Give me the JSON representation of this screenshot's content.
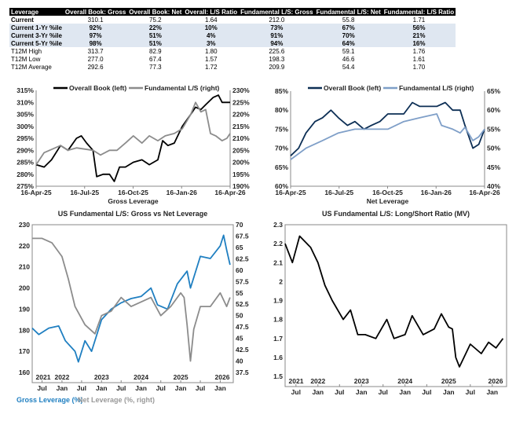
{
  "table": {
    "headers": [
      "Leverage",
      "Overall Book: Gross",
      "Overall Book: Net",
      "Overall: L/S Ratio",
      "Fundamental L/S: Gross",
      "Fundamental L/S: Net",
      "Fundamental: L/S Ratio"
    ],
    "rows": [
      {
        "type": "cur",
        "cells": [
          "Current",
          "310.1",
          "75.2",
          "1.64",
          "212.0",
          "55.8",
          "1.71"
        ]
      },
      {
        "type": "pct",
        "cells": [
          "Current 1-Yr %ile",
          "92%",
          "22%",
          "10%",
          "73%",
          "67%",
          "56%"
        ]
      },
      {
        "type": "pct",
        "cells": [
          "Current 3-Yr %ile",
          "97%",
          "51%",
          "4%",
          "91%",
          "70%",
          "21%"
        ]
      },
      {
        "type": "pct",
        "cells": [
          "Current 5-Yr %ile",
          "98%",
          "51%",
          "3%",
          "94%",
          "64%",
          "16%"
        ]
      },
      {
        "type": "n",
        "cells": [
          "T12M High",
          "313.7",
          "82.9",
          "1.80",
          "225.6",
          "59.1",
          "1.76"
        ]
      },
      {
        "type": "n",
        "cells": [
          "T12M Low",
          "277.0",
          "67.4",
          "1.57",
          "198.3",
          "46.6",
          "1.61"
        ]
      },
      {
        "type": "n",
        "cells": [
          "T12M Average",
          "292.6",
          "77.3",
          "1.72",
          "209.9",
          "54.4",
          "1.70"
        ]
      }
    ]
  },
  "chart_data": [
    {
      "type": "line",
      "title": "",
      "xlabel": "Gross Leverage",
      "xticks": [
        "16-Apr-25",
        "16-Jul-25",
        "16-Oct-25",
        "16-Jan-26",
        "16-Apr-26"
      ],
      "xlim": [
        "2025-04-16",
        "2026-04-16"
      ],
      "ylim": [
        275,
        315
      ],
      "yticks": [
        275,
        280,
        285,
        290,
        295,
        300,
        305,
        310,
        315
      ],
      "yunit": "%",
      "y2lim": [
        190,
        230
      ],
      "y2ticks": [
        190,
        195,
        200,
        205,
        210,
        215,
        220,
        225,
        230
      ],
      "y2unit": "%",
      "legend": "top",
      "series": [
        {
          "name": "Overall Book (left)",
          "axis": "left",
          "color": "#000000",
          "x": [
            "2025-04-16",
            "2025-05-01",
            "2025-05-15",
            "2025-06-01",
            "2025-06-15",
            "2025-07-01",
            "2025-07-10",
            "2025-07-20",
            "2025-08-01",
            "2025-08-08",
            "2025-08-20",
            "2025-09-01",
            "2025-09-10",
            "2025-09-20",
            "2025-10-01",
            "2025-10-16",
            "2025-11-01",
            "2025-11-15",
            "2025-12-01",
            "2025-12-10",
            "2025-12-20",
            "2026-01-01",
            "2026-01-16",
            "2026-02-01",
            "2026-02-10",
            "2026-02-20",
            "2026-03-01",
            "2026-03-15",
            "2026-03-25",
            "2026-04-01",
            "2026-04-16"
          ],
          "y": [
            284,
            283,
            286,
            292,
            290,
            295,
            296,
            293,
            290,
            279,
            280,
            280,
            277,
            283,
            283,
            285,
            286,
            284,
            286,
            294,
            292,
            293,
            300,
            305,
            308,
            307,
            309,
            312,
            313,
            310,
            310
          ]
        },
        {
          "name": "Fundamental L/S (right)",
          "axis": "right",
          "color": "#8c8c8c",
          "x": [
            "2025-04-16",
            "2025-05-01",
            "2025-06-01",
            "2025-06-15",
            "2025-07-01",
            "2025-08-01",
            "2025-08-15",
            "2025-09-01",
            "2025-09-15",
            "2025-10-01",
            "2025-10-16",
            "2025-11-01",
            "2025-11-15",
            "2025-12-01",
            "2025-12-15",
            "2026-01-01",
            "2026-01-16",
            "2026-02-01",
            "2026-02-10",
            "2026-02-20",
            "2026-03-01",
            "2026-03-10",
            "2026-03-20",
            "2026-04-01",
            "2026-04-10",
            "2026-04-16"
          ],
          "y": [
            199,
            204,
            207,
            205,
            206,
            205,
            203,
            205,
            205,
            208,
            211,
            208,
            211,
            209,
            211,
            212,
            214,
            220,
            225,
            221,
            222,
            212,
            211,
            209,
            210,
            212
          ]
        }
      ]
    },
    {
      "type": "line",
      "title": "",
      "xlabel": "Net Leverage",
      "xticks": [
        "16-Apr-25",
        "16-Jul-25",
        "16-Oct-25",
        "16-Jan-26",
        "16-Apr-26"
      ],
      "xlim": [
        "2025-04-16",
        "2026-04-16"
      ],
      "ylim": [
        60,
        85
      ],
      "yticks": [
        60,
        65,
        70,
        75,
        80,
        85
      ],
      "yunit": "%",
      "y2lim": [
        40,
        65
      ],
      "y2ticks": [
        40,
        45,
        50,
        55,
        60,
        65
      ],
      "y2unit": "%",
      "legend": "top",
      "series": [
        {
          "name": "Overall Book (left)",
          "axis": "left",
          "color": "#0d2f55",
          "x": [
            "2025-04-16",
            "2025-05-01",
            "2025-05-15",
            "2025-06-01",
            "2025-06-15",
            "2025-07-01",
            "2025-07-15",
            "2025-08-01",
            "2025-08-15",
            "2025-09-01",
            "2025-09-15",
            "2025-10-01",
            "2025-10-16",
            "2025-11-01",
            "2025-11-15",
            "2025-12-01",
            "2025-12-15",
            "2026-01-01",
            "2026-01-16",
            "2026-02-01",
            "2026-02-15",
            "2026-03-01",
            "2026-03-10",
            "2026-03-25",
            "2026-04-05",
            "2026-04-16"
          ],
          "y": [
            68,
            70,
            74,
            77,
            78,
            80,
            78,
            76,
            77,
            75,
            76,
            77,
            79,
            79,
            79,
            82,
            81,
            81,
            81,
            82,
            80,
            80,
            76,
            70,
            71,
            75
          ]
        },
        {
          "name": "Fundamental L/S (right)",
          "axis": "right",
          "color": "#7f9fc8",
          "x": [
            "2025-04-16",
            "2025-05-15",
            "2025-06-15",
            "2025-07-15",
            "2025-08-15",
            "2025-09-15",
            "2025-10-16",
            "2025-11-15",
            "2025-12-15",
            "2026-01-16",
            "2026-01-25",
            "2026-02-15",
            "2026-03-01",
            "2026-03-10",
            "2026-03-25",
            "2026-04-05",
            "2026-04-16"
          ],
          "y": [
            47,
            50,
            52,
            54,
            55,
            55,
            55,
            57,
            58,
            59,
            56,
            55,
            54,
            55.5,
            52,
            53,
            55
          ]
        }
      ]
    },
    {
      "type": "line",
      "title": "US Fundamental L/S: Gross vs Net Leverage",
      "xticks": [
        "Jul",
        "Jan",
        "Jul",
        "Jan",
        "Jul",
        "Jan",
        "Jul",
        "Jan",
        "Jul",
        "Jan"
      ],
      "years": [
        "2021",
        "2022",
        "2023",
        "2024",
        "2025",
        "2026"
      ],
      "xlim": [
        "2021-04",
        "2026-05"
      ],
      "ylim": [
        160,
        230
      ],
      "yticks": [
        160,
        170,
        180,
        190,
        200,
        210,
        220,
        230
      ],
      "y2lim": [
        37.5,
        70
      ],
      "y2ticks": [
        37.5,
        40,
        42.5,
        45,
        47.5,
        50,
        52.5,
        55,
        57.5,
        60,
        62.5,
        65,
        67.5,
        70
      ],
      "legend": "bottom-left",
      "series": [
        {
          "name": "Gross Leverage (%)",
          "axis": "left",
          "color": "#1f7fc1",
          "x": [
            "2021-04",
            "2021-06",
            "2021-09",
            "2021-12",
            "2022-02",
            "2022-05",
            "2022-06",
            "2022-08",
            "2022-10",
            "2023-01",
            "2023-04",
            "2023-07",
            "2023-10",
            "2024-01",
            "2024-04",
            "2024-06",
            "2024-09",
            "2024-12",
            "2025-03",
            "2025-04",
            "2025-07",
            "2025-10",
            "2026-01",
            "2026-02",
            "2026-03",
            "2026-04"
          ],
          "y": [
            181,
            178,
            181,
            182,
            175,
            170,
            165,
            175,
            170,
            185,
            190,
            193,
            195,
            196,
            200,
            192,
            190,
            202,
            208,
            200,
            215,
            214,
            220,
            225,
            218,
            211
          ]
        },
        {
          "name": "Net Leverage (%, right)",
          "axis": "right",
          "color": "#8c8c8c",
          "x": [
            "2021-04",
            "2021-07",
            "2021-10",
            "2022-01",
            "2022-03",
            "2022-05",
            "2022-08",
            "2022-11",
            "2023-01",
            "2023-04",
            "2023-07",
            "2023-10",
            "2024-01",
            "2024-04",
            "2024-07",
            "2024-10",
            "2025-01",
            "2025-02",
            "2025-03",
            "2025-04",
            "2025-05",
            "2025-07",
            "2025-10",
            "2026-01",
            "2026-03",
            "2026-04"
          ],
          "y": [
            67,
            67,
            66,
            63,
            58,
            52,
            48,
            46,
            50,
            51,
            54,
            52,
            53,
            54,
            50,
            52,
            55,
            54,
            48,
            40,
            47,
            52,
            52,
            55,
            52,
            54
          ]
        }
      ]
    },
    {
      "type": "line",
      "title": "US Fundamental L/S: Long/Short Ratio (MV)",
      "xticks": [
        "Jul",
        "Jan",
        "Jul",
        "Jan",
        "Jul",
        "Jan",
        "Jul",
        "Jan",
        "Jul",
        "Jan"
      ],
      "years": [
        "2021",
        "2022",
        "2023",
        "2024",
        "2025",
        "2026"
      ],
      "xlim": [
        "2021-04",
        "2026-05"
      ],
      "ylim": [
        1.5,
        2.3
      ],
      "yticks": [
        1.5,
        1.6,
        1.7,
        1.8,
        1.9,
        2,
        2.1,
        2.2,
        2.3
      ],
      "series": [
        {
          "axis": "left",
          "color": "#000000",
          "x": [
            "2021-04",
            "2021-06",
            "2021-08",
            "2021-11",
            "2022-01",
            "2022-03",
            "2022-05",
            "2022-08",
            "2022-10",
            "2022-12",
            "2023-02",
            "2023-05",
            "2023-08",
            "2023-10",
            "2024-01",
            "2024-03",
            "2024-06",
            "2024-09",
            "2024-11",
            "2025-01",
            "2025-02",
            "2025-03",
            "2025-04",
            "2025-07",
            "2025-10",
            "2025-12",
            "2026-02",
            "2026-04"
          ],
          "y": [
            2.2,
            2.1,
            2.24,
            2.18,
            2.1,
            1.98,
            1.9,
            1.8,
            1.85,
            1.72,
            1.72,
            1.7,
            1.8,
            1.7,
            1.72,
            1.82,
            1.72,
            1.75,
            1.83,
            1.76,
            1.75,
            1.6,
            1.55,
            1.67,
            1.62,
            1.68,
            1.65,
            1.7
          ]
        }
      ]
    }
  ]
}
